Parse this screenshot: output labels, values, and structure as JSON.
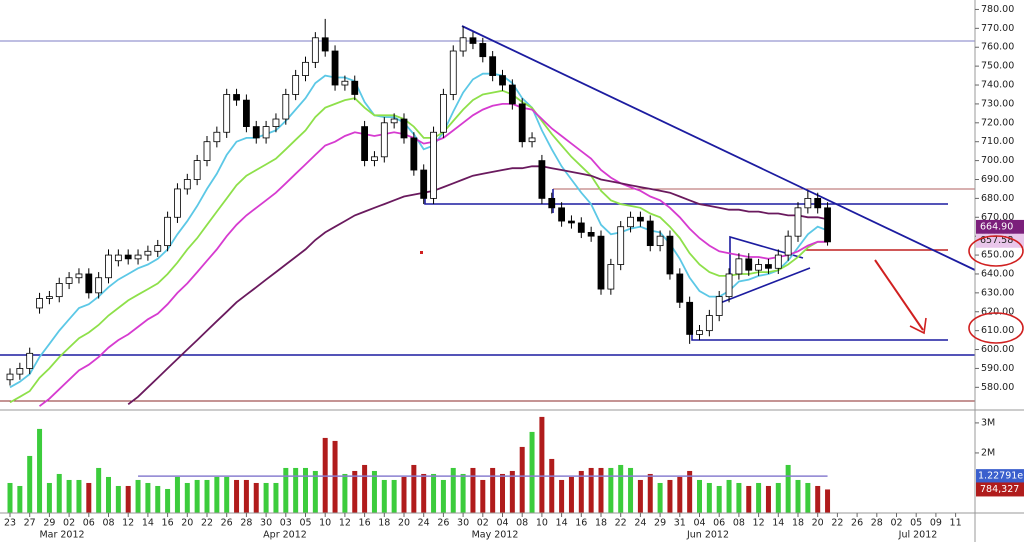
{
  "chart_data": {
    "type": "candlestick",
    "categories": [
      "23",
      null,
      "27",
      null,
      "29",
      null,
      "02",
      null,
      "06",
      null,
      "08",
      null,
      "12",
      null,
      "14",
      null,
      "16",
      null,
      "20",
      null,
      "22",
      null,
      "26",
      null,
      "28",
      null,
      "30",
      null,
      "03",
      null,
      "05",
      null,
      "10",
      null,
      "12",
      null,
      "16",
      null,
      "18",
      null,
      "20",
      null,
      "24",
      null,
      "26",
      null,
      "30",
      null,
      "02",
      null,
      "04",
      null,
      "08",
      null,
      "10",
      null,
      "14",
      null,
      "16",
      null,
      "18",
      null,
      "22",
      null,
      "24",
      null,
      "29",
      null,
      "31",
      null,
      "04",
      null,
      "06",
      null,
      "08",
      null,
      "12",
      null,
      "14",
      null,
      "18",
      null,
      "20",
      null,
      "22",
      null,
      "26",
      null,
      "28",
      null,
      "02",
      null,
      "05",
      null,
      "09",
      null,
      "11"
    ],
    "month_labels": [
      "Mar 2012",
      "Apr 2012",
      "May 2012",
      "Jun 2012",
      "Jul 2012"
    ],
    "open": [
      584,
      587,
      590,
      622,
      627,
      628,
      635,
      638,
      640,
      630,
      638,
      647,
      650,
      648,
      650,
      652,
      655,
      670,
      685,
      690,
      700,
      710,
      715,
      735,
      732,
      718,
      712,
      718,
      722,
      735,
      745,
      752,
      765,
      758,
      740,
      742,
      718,
      700,
      702,
      720,
      722,
      712,
      695,
      680,
      715,
      735,
      758,
      765,
      762,
      755,
      745,
      740,
      730,
      710,
      700,
      680,
      675,
      668,
      667,
      662,
      660,
      632,
      645,
      665,
      670,
      668,
      655,
      660,
      640,
      625,
      608,
      610,
      618,
      628,
      640,
      648,
      642,
      645,
      643,
      650,
      660,
      675,
      680,
      675,
      null,
      null,
      null,
      null,
      null,
      null,
      null,
      null,
      null,
      null,
      null,
      null,
      null
    ],
    "high": [
      590,
      593,
      601,
      630,
      631,
      638,
      641,
      643,
      643,
      641,
      653,
      653,
      653,
      653,
      655,
      658,
      673,
      688,
      693,
      703,
      713,
      718,
      738,
      738,
      735,
      721,
      721,
      725,
      738,
      748,
      755,
      768,
      775,
      761,
      745,
      745,
      721,
      705,
      723,
      725,
      725,
      715,
      698,
      718,
      738,
      761,
      771,
      768,
      765,
      758,
      748,
      743,
      733,
      715,
      703,
      683,
      678,
      671,
      670,
      665,
      663,
      648,
      668,
      673,
      673,
      671,
      663,
      663,
      643,
      628,
      613,
      621,
      631,
      643,
      651,
      651,
      648,
      648,
      653,
      663,
      678,
      684,
      683,
      678,
      null,
      null,
      null,
      null,
      null,
      null,
      null,
      null,
      null,
      null,
      null,
      null,
      null
    ],
    "low": [
      581,
      584,
      587,
      619,
      624,
      625,
      632,
      635,
      627,
      627,
      635,
      644,
      645,
      645,
      647,
      649,
      652,
      667,
      682,
      687,
      697,
      707,
      712,
      729,
      715,
      709,
      709,
      715,
      719,
      732,
      742,
      749,
      755,
      737,
      737,
      732,
      697,
      697,
      699,
      717,
      709,
      692,
      677,
      677,
      712,
      732,
      755,
      759,
      752,
      742,
      737,
      727,
      707,
      707,
      677,
      672,
      665,
      664,
      659,
      657,
      629,
      629,
      642,
      662,
      665,
      652,
      652,
      637,
      622,
      603,
      605,
      607,
      615,
      625,
      637,
      639,
      639,
      640,
      640,
      647,
      657,
      672,
      672,
      655,
      null,
      null,
      null,
      null,
      null,
      null,
      null,
      null,
      null,
      null,
      null,
      null,
      null
    ],
    "close": [
      587,
      590,
      598,
      627,
      628,
      635,
      638,
      640,
      630,
      638,
      650,
      650,
      648,
      650,
      652,
      655,
      670,
      685,
      690,
      700,
      710,
      715,
      735,
      732,
      718,
      712,
      718,
      722,
      735,
      745,
      752,
      765,
      758,
      740,
      742,
      735,
      700,
      702,
      720,
      722,
      712,
      695,
      680,
      715,
      735,
      758,
      765,
      762,
      755,
      745,
      740,
      730,
      710,
      712,
      680,
      675,
      668,
      667,
      662,
      660,
      632,
      645,
      665,
      670,
      668,
      655,
      660,
      640,
      625,
      608,
      610,
      618,
      628,
      640,
      648,
      642,
      645,
      643,
      650,
      660,
      675,
      680,
      675,
      657,
      null,
      null,
      null,
      null,
      null,
      null,
      null,
      null,
      null,
      null,
      null,
      null,
      null
    ],
    "up_color": "#ffffff",
    "down_color": "#000000",
    "series": [
      {
        "color": "#5cc8e6",
        "values": [
          580,
          583,
          587,
          596,
          603,
          610,
          616,
          622,
          624,
          628,
          633,
          637,
          640,
          643,
          645,
          648,
          653,
          661,
          668,
          676,
          685,
          693,
          703,
          710,
          712,
          712,
          714,
          716,
          721,
          727,
          733,
          741,
          745,
          744,
          744,
          742,
          731,
          724,
          723,
          723,
          720,
          714,
          706,
          708,
          715,
          726,
          736,
          743,
          746,
          746,
          745,
          741,
          733,
          728,
          716,
          706,
          697,
          690,
          683,
          677,
          666,
          661,
          662,
          664,
          665,
          663,
          662,
          656,
          648,
          638,
          631,
          628,
          628,
          631,
          636,
          637,
          639,
          640,
          642,
          647,
          654,
          661,
          665,
          663,
          null,
          null,
          null,
          null,
          null,
          null,
          null,
          null,
          null,
          null,
          null,
          null,
          null
        ]
      },
      {
        "color": "#8ee04a",
        "values": [
          572,
          575,
          578,
          585,
          590,
          596,
          601,
          606,
          609,
          613,
          618,
          622,
          626,
          629,
          632,
          635,
          640,
          646,
          653,
          659,
          666,
          673,
          680,
          687,
          692,
          695,
          698,
          701,
          706,
          711,
          716,
          723,
          728,
          730,
          732,
          733,
          728,
          724,
          724,
          724,
          722,
          718,
          712,
          712,
          715,
          721,
          727,
          732,
          735,
          736,
          737,
          735,
          731,
          728,
          721,
          714,
          708,
          702,
          697,
          692,
          684,
          679,
          677,
          676,
          675,
          672,
          670,
          665,
          659,
          651,
          645,
          641,
          639,
          639,
          640,
          640,
          641,
          641,
          642,
          645,
          649,
          654,
          657,
          657,
          null,
          null,
          null,
          null,
          null,
          null,
          null,
          null,
          null,
          null,
          null,
          null,
          null
        ]
      },
      {
        "color": "#d63bd0",
        "values": [
          null,
          null,
          null,
          570,
          574,
          579,
          584,
          589,
          592,
          596,
          601,
          605,
          608,
          612,
          616,
          619,
          624,
          630,
          635,
          641,
          647,
          653,
          660,
          666,
          671,
          675,
          679,
          683,
          688,
          693,
          698,
          703,
          708,
          710,
          713,
          715,
          714,
          713,
          714,
          715,
          714,
          712,
          709,
          710,
          712,
          716,
          720,
          724,
          727,
          729,
          730,
          730,
          728,
          727,
          722,
          717,
          713,
          709,
          705,
          701,
          695,
          691,
          688,
          686,
          684,
          681,
          679,
          675,
          670,
          664,
          659,
          655,
          652,
          651,
          650,
          649,
          649,
          648,
          649,
          650,
          652,
          655,
          657,
          657,
          null,
          null,
          null,
          null,
          null,
          null,
          null,
          null,
          null,
          null,
          null,
          null,
          null
        ]
      },
      {
        "color": "#6a1a5e",
        "values": [
          null,
          null,
          null,
          null,
          null,
          null,
          null,
          null,
          null,
          null,
          null,
          null,
          571,
          575,
          580,
          585,
          590,
          595,
          600,
          605,
          610,
          615,
          620,
          625,
          629,
          633,
          637,
          641,
          645,
          649,
          653,
          658,
          662,
          665,
          668,
          671,
          673,
          675,
          677,
          679,
          681,
          682,
          683,
          684,
          686,
          688,
          690,
          692,
          693,
          694,
          695,
          696,
          696,
          697,
          697,
          696,
          695,
          694,
          693,
          692,
          690,
          689,
          688,
          687,
          686,
          685,
          684,
          683,
          681,
          679,
          677,
          676,
          675,
          674,
          674,
          673,
          673,
          672,
          672,
          671,
          671,
          670,
          670,
          669,
          null,
          null,
          null,
          null,
          null,
          null,
          null,
          null,
          null,
          null,
          null,
          null,
          null
        ]
      }
    ],
    "ylim": [
      568,
      785
    ],
    "yticks": [
      {
        "value": 780,
        "label": "780.00"
      },
      {
        "value": 770,
        "label": "770.00"
      },
      {
        "value": 760,
        "label": "760.00"
      },
      {
        "value": 750,
        "label": "750.00"
      },
      {
        "value": 740,
        "label": "740.00"
      },
      {
        "value": 730,
        "label": "730.00"
      },
      {
        "value": 720,
        "label": "720.00"
      },
      {
        "value": 710,
        "label": "710.00"
      },
      {
        "value": 700,
        "label": "700.00"
      },
      {
        "value": 690,
        "label": "690.00"
      },
      {
        "value": 680,
        "label": "680.00"
      },
      {
        "value": 670,
        "label": "670.00"
      },
      {
        "value": 660,
        "label": "660.00"
      },
      {
        "value": 650,
        "label": "650.00"
      },
      {
        "value": 640,
        "label": "640.00"
      },
      {
        "value": 630,
        "label": "630.00"
      },
      {
        "value": 620,
        "label": "620.00"
      },
      {
        "value": 610,
        "label": "610.00"
      },
      {
        "value": 600,
        "label": "600.00"
      },
      {
        "value": 590,
        "label": "590.00"
      },
      {
        "value": 580,
        "label": "580.00"
      }
    ],
    "last_value_labels": [
      {
        "value": 664.9,
        "label": "664.90",
        "color": "#7b1f7b"
      },
      {
        "value": 657.58,
        "label": "657.58",
        "color": "#e9c6ea"
      }
    ],
    "volume": [
      1000000,
      900000,
      1900000,
      2800000,
      1000000,
      1300000,
      1100000,
      1100000,
      1000000,
      1500000,
      1200000,
      900000,
      900000,
      1100000,
      1000000,
      900000,
      800000,
      1200000,
      1000000,
      1100000,
      1100000,
      1200000,
      1200000,
      1100000,
      1100000,
      1000000,
      1000000,
      1000000,
      1500000,
      1500000,
      1500000,
      1400000,
      2500000,
      2400000,
      1300000,
      1400000,
      1600000,
      1400000,
      1100000,
      1100000,
      1200000,
      1600000,
      1300000,
      1300000,
      1100000,
      1500000,
      1300000,
      1500000,
      1100000,
      1500000,
      1300000,
      1400000,
      2200000,
      2700000,
      3200000,
      1800000,
      1100000,
      1200000,
      1400000,
      1500000,
      1500000,
      1500000,
      1600000,
      1500000,
      1100000,
      1300000,
      1000000,
      1100000,
      1200000,
      1400000,
      1100000,
      1000000,
      900000,
      1100000,
      1000000,
      900000,
      1000000,
      900000,
      1000000,
      1600000,
      1100000,
      1000000,
      900000,
      784327,
      null,
      null,
      null,
      null,
      null,
      null,
      null,
      null,
      null,
      null,
      null,
      null,
      null
    ],
    "volume_up_color": "#3ccc3c",
    "volume_down_color": "#b01c1c",
    "volume_ylim": [
      0,
      3330000
    ],
    "volume_yticks": [
      {
        "value": 3000000,
        "label": "3M"
      },
      {
        "value": 2000000,
        "label": "2M"
      }
    ],
    "volume_avg": {
      "value": 1227910,
      "label": "1.22791e+",
      "color": "#8a7fd0"
    },
    "volume_last": {
      "value": 784327,
      "label": "784,327"
    }
  }
}
